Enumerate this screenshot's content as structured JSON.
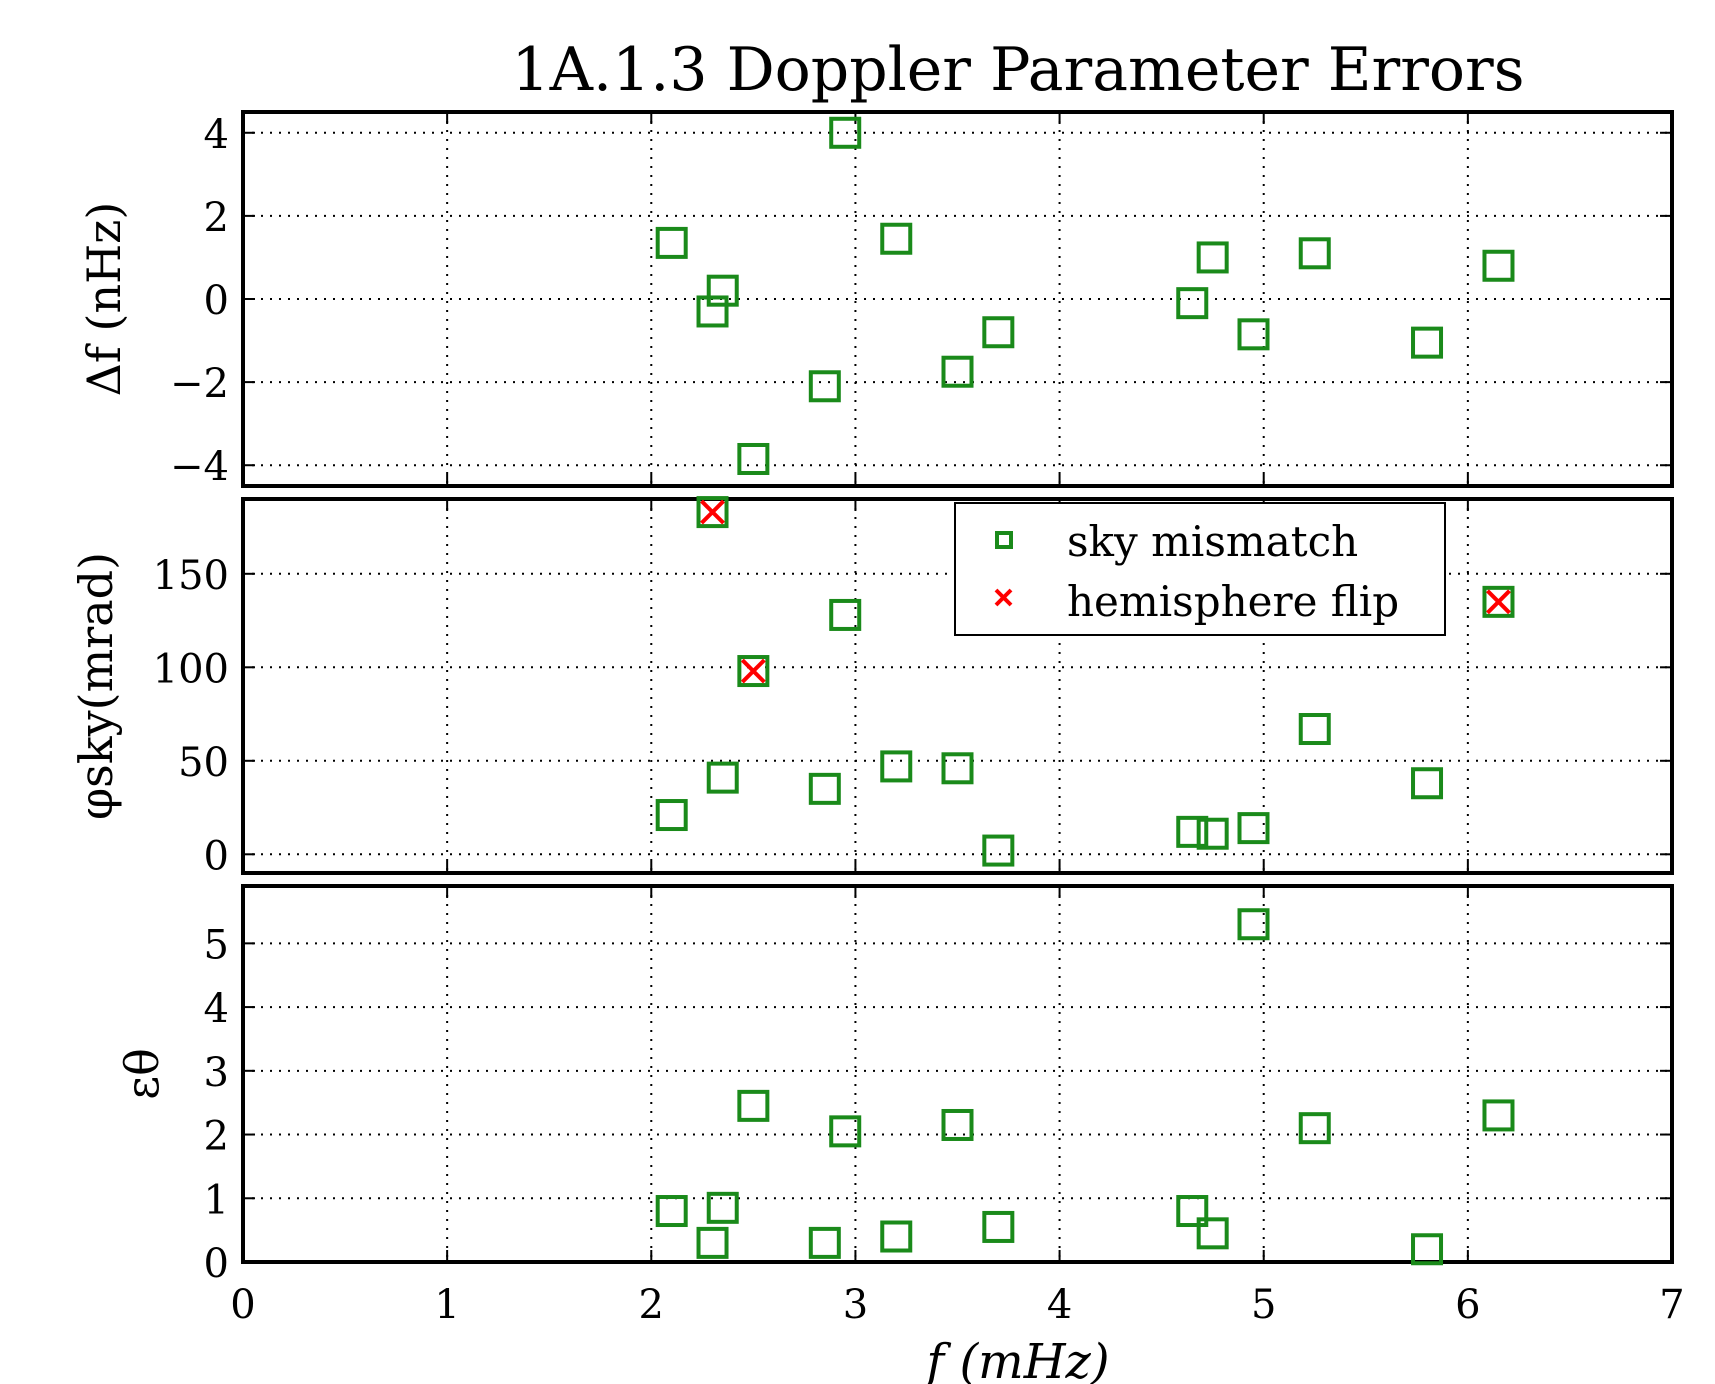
{
  "chart_data": {
    "title": "1A.1.3 Doppler Parameter Errors",
    "xlabel": "f  (mHz)",
    "xlim": [
      0,
      7
    ],
    "xticks": [
      "0",
      "1",
      "2",
      "3",
      "4",
      "5",
      "6",
      "7"
    ],
    "grid": true,
    "colors": {
      "sky_mismatch": "#1a8a1a",
      "hemisphere_flip": "#ff0000"
    },
    "legend": {
      "placement": "top-right of middle panel",
      "entries": [
        {
          "label": "sky mismatch",
          "marker": "square",
          "color": "#1a8a1a"
        },
        {
          "label": "hemisphere flip",
          "marker": "x",
          "color": "#ff0000"
        }
      ]
    },
    "panels": [
      {
        "type": "scatter",
        "ylabel": "Δf (nHz)",
        "ylim": [
          -4.5,
          4.5
        ],
        "yticks": [
          {
            "value": 4,
            "label": "4"
          },
          {
            "value": 2,
            "label": "2"
          },
          {
            "value": 0,
            "label": "0"
          },
          {
            "value": -2,
            "label": "−2"
          },
          {
            "value": -4,
            "label": "−4"
          }
        ],
        "series": [
          {
            "name": "sky mismatch",
            "points": [
              [
                2.1,
                1.35
              ],
              [
                2.3,
                -0.3
              ],
              [
                2.35,
                0.2
              ],
              [
                2.5,
                -3.85
              ],
              [
                2.85,
                -2.1
              ],
              [
                2.95,
                4.0
              ],
              [
                3.2,
                1.45
              ],
              [
                3.5,
                -1.75
              ],
              [
                3.7,
                -0.8
              ],
              [
                4.65,
                -0.1
              ],
              [
                4.75,
                1.0
              ],
              [
                4.95,
                -0.85
              ],
              [
                5.25,
                1.1
              ],
              [
                5.8,
                -1.05
              ],
              [
                6.15,
                0.8
              ]
            ]
          }
        ]
      },
      {
        "type": "scatter",
        "ylabel": "φsky(mrad)",
        "ylim": [
          -10,
          190
        ],
        "yticks": [
          {
            "value": 150,
            "label": "150"
          },
          {
            "value": 100,
            "label": "100"
          },
          {
            "value": 50,
            "label": "50"
          },
          {
            "value": 0,
            "label": "0"
          }
        ],
        "series": [
          {
            "name": "sky mismatch",
            "points": [
              [
                2.1,
                21
              ],
              [
                2.3,
                183
              ],
              [
                2.35,
                41
              ],
              [
                2.5,
                98
              ],
              [
                2.85,
                35
              ],
              [
                2.95,
                128
              ],
              [
                3.2,
                47
              ],
              [
                3.5,
                46
              ],
              [
                3.7,
                2
              ],
              [
                4.65,
                12
              ],
              [
                4.75,
                11
              ],
              [
                4.95,
                14
              ],
              [
                5.25,
                67
              ],
              [
                5.8,
                38
              ],
              [
                6.15,
                135
              ]
            ]
          },
          {
            "name": "hemisphere flip",
            "points": [
              [
                2.3,
                183
              ],
              [
                2.5,
                98
              ],
              [
                6.15,
                135
              ]
            ]
          }
        ]
      },
      {
        "type": "scatter",
        "ylabel": "εθ",
        "ylim": [
          0,
          5.9
        ],
        "yticks": [
          {
            "value": 5,
            "label": "5"
          },
          {
            "value": 4,
            "label": "4"
          },
          {
            "value": 3,
            "label": "3"
          },
          {
            "value": 2,
            "label": "2"
          },
          {
            "value": 1,
            "label": "1"
          },
          {
            "value": 0,
            "label": "0"
          }
        ],
        "series": [
          {
            "name": "sky mismatch",
            "points": [
              [
                2.1,
                0.8
              ],
              [
                2.3,
                0.3
              ],
              [
                2.35,
                0.85
              ],
              [
                2.5,
                2.45
              ],
              [
                2.85,
                0.3
              ],
              [
                2.95,
                2.05
              ],
              [
                3.2,
                0.4
              ],
              [
                3.5,
                2.15
              ],
              [
                3.7,
                0.55
              ],
              [
                4.65,
                0.8
              ],
              [
                4.75,
                0.45
              ],
              [
                4.95,
                5.3
              ],
              [
                5.25,
                2.1
              ],
              [
                5.8,
                0.2
              ],
              [
                6.15,
                2.3
              ]
            ]
          }
        ]
      }
    ]
  }
}
